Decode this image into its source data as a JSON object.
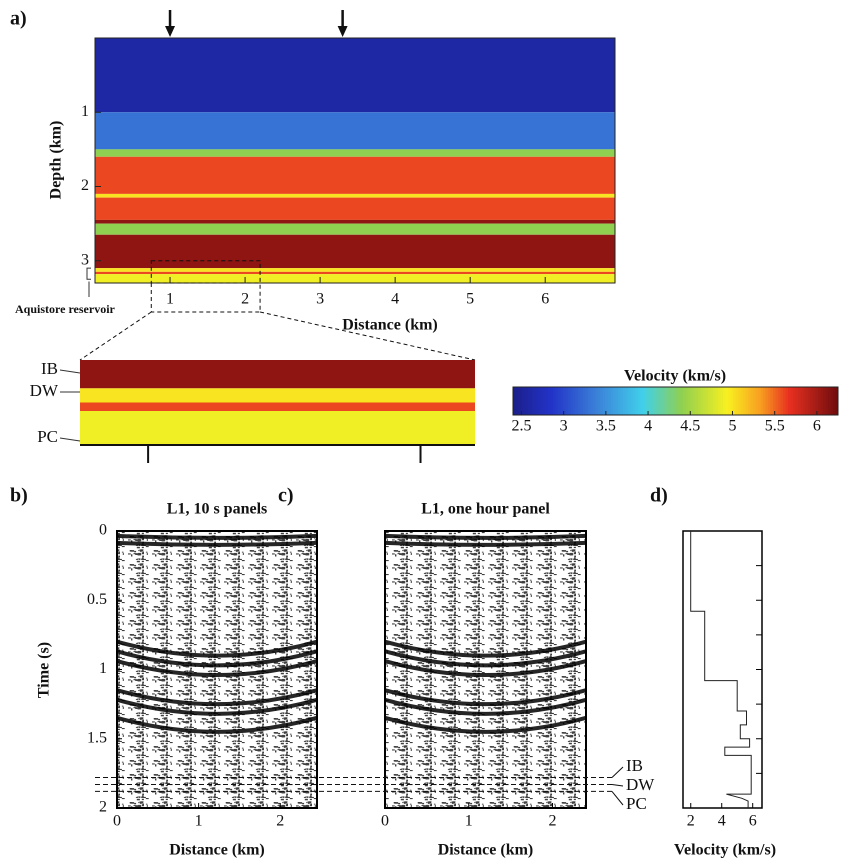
{
  "chart_data": [
    {
      "type": "layered-model",
      "panel_label": "a)",
      "xlabel": "Distance (km)",
      "ylabel": "Depth (km)",
      "xlim": [
        0,
        6.93
      ],
      "xticks": [
        1,
        2,
        3,
        4,
        5,
        6
      ],
      "ylim": [
        0,
        3.3
      ],
      "yticks": [
        1,
        2,
        3
      ],
      "depth_tops": [
        0,
        1.0,
        1.5,
        1.6,
        2.1,
        2.15,
        2.45,
        2.5,
        2.65,
        3.1,
        3.15,
        3.18
      ],
      "velocities": [
        2.6,
        3.3,
        4.4,
        5.6,
        5.0,
        5.6,
        6.1,
        4.4,
        6.1,
        5.0,
        5.6,
        4.9
      ],
      "arrows_x": [
        1.0,
        3.3
      ],
      "annotation": "Aquistore reservoir",
      "zoom_x": [
        0.75,
        2.2
      ],
      "zoom_depth": [
        3.0,
        3.3
      ],
      "inset_labels": [
        "IB",
        "DW",
        "PC"
      ],
      "colorbar": {
        "label": "Velocity (km/s)",
        "clim": [
          2.4,
          6.25
        ],
        "ticks": [
          2.5,
          3,
          3.5,
          4,
          4.5,
          5,
          5.5,
          6
        ]
      }
    },
    {
      "type": "seismic",
      "panel_label": "b)",
      "title": "L1, 10 s panels",
      "xlabel": "Distance (km)",
      "ylabel": "Time (s)",
      "xlim": [
        0,
        2.45
      ],
      "xticks": [
        0,
        1,
        2
      ],
      "ylim": [
        0,
        2
      ],
      "yticks": [
        0,
        0.5,
        1,
        1.5,
        2
      ],
      "reflectors": [
        0.05,
        0.1,
        0.9,
        0.97,
        1.04,
        1.25,
        1.32,
        1.45
      ]
    },
    {
      "type": "seismic",
      "panel_label": "c)",
      "title": "L1, one hour panel",
      "xlabel": "Distance (km)",
      "xlim": [
        0,
        2.4
      ],
      "xticks": [
        0,
        1,
        2
      ],
      "ylim": [
        0,
        2
      ],
      "reflectors": [
        0.05,
        0.1,
        0.9,
        0.97,
        1.04,
        1.25,
        1.32,
        1.45
      ],
      "horizons": {
        "names": [
          "IB",
          "DW",
          "PC"
        ],
        "times": [
          1.78,
          1.83,
          1.88
        ]
      }
    },
    {
      "type": "profile",
      "panel_label": "d)",
      "xlabel": "Velocity (km/s)",
      "xlim": [
        1.5,
        6.6
      ],
      "xticks": [
        2,
        4,
        6
      ],
      "ylim": [
        0,
        2
      ],
      "yticks": [
        0,
        0.25,
        0.5,
        0.75,
        1,
        1.25,
        1.5,
        1.75,
        2
      ],
      "time": [
        0,
        0.58,
        0.58,
        1.08,
        1.08,
        1.3,
        1.3,
        1.4,
        1.4,
        1.5,
        1.5,
        1.56,
        1.56,
        1.62,
        1.62,
        1.9,
        1.9,
        1.93,
        1.95,
        2.0
      ],
      "velocity": [
        2.0,
        2.0,
        2.9,
        2.9,
        5.0,
        5.0,
        5.6,
        5.6,
        5.2,
        5.2,
        5.8,
        5.8,
        4.2,
        4.2,
        5.9,
        5.9,
        4.3,
        5.3,
        5.7,
        5.7
      ]
    }
  ]
}
